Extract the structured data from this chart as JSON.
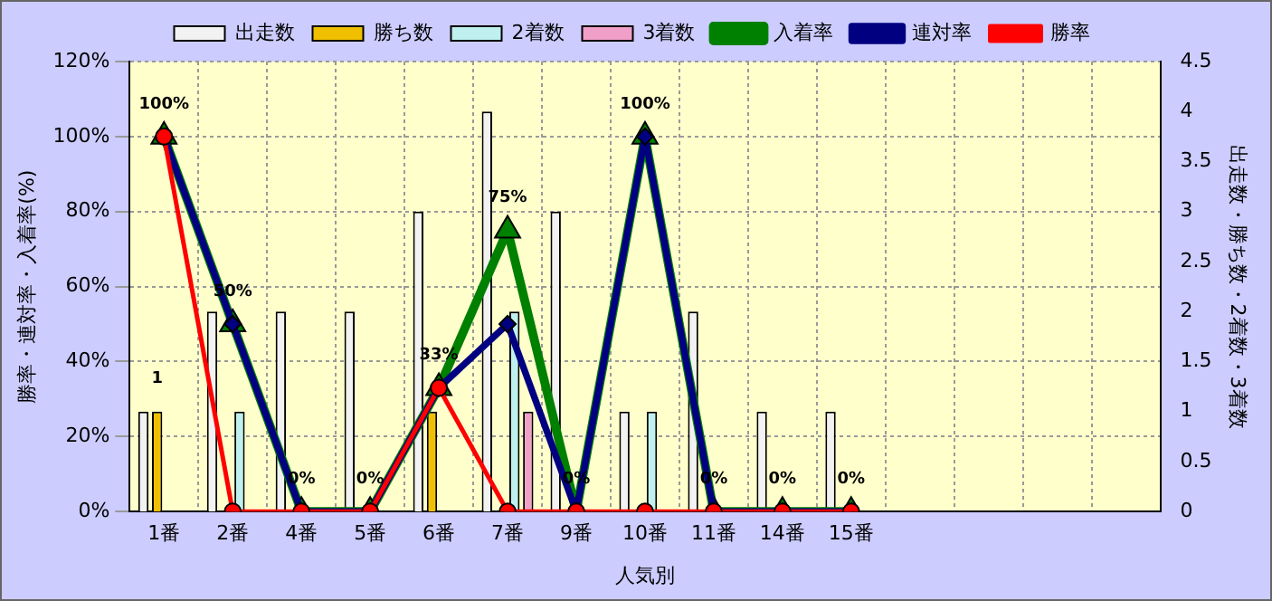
{
  "chart_data": {
    "type": "bar",
    "xlabel": "人気別",
    "ylabel": "勝率・連対率・入着率(%)",
    "y2label": "出走数・勝ち数・2着数・3着数",
    "categories": [
      "1番",
      "2番",
      "4番",
      "5番",
      "6番",
      "7番",
      "9番",
      "10番",
      "11番",
      "14番",
      "15番",
      null,
      null,
      null,
      null
    ],
    "series": [
      {
        "name": "出走数",
        "axis": "y2",
        "color": "#f2f2f2",
        "values": [
          1,
          2,
          2,
          2,
          3,
          4,
          3,
          1,
          2,
          1,
          1,
          null,
          null,
          null,
          null
        ]
      },
      {
        "name": "勝ち数",
        "axis": "y2",
        "color": "#f0c000",
        "values": [
          1,
          0,
          0,
          0,
          1,
          0,
          0,
          0,
          0,
          0,
          0,
          null,
          null,
          null,
          null
        ],
        "value_labels": [
          "1",
          null,
          null,
          null,
          null,
          null,
          null,
          null,
          null,
          null,
          null,
          null,
          null,
          null,
          null
        ]
      },
      {
        "name": "2着数",
        "axis": "y2",
        "color": "#bff0f0",
        "values": [
          0,
          1,
          0,
          0,
          0,
          2,
          0,
          1,
          0,
          0,
          0,
          null,
          null,
          null,
          null
        ]
      },
      {
        "name": "3着数",
        "axis": "y2",
        "color": "#f0a0c8",
        "values": [
          0,
          0,
          0,
          0,
          0,
          1,
          0,
          0,
          0,
          0,
          0,
          null,
          null,
          null,
          null
        ]
      },
      {
        "name": "入着率",
        "type": "line",
        "marker": "triangle",
        "color": "#008000",
        "values": [
          100,
          50,
          0,
          0,
          33,
          75,
          0,
          100,
          0,
          0,
          0,
          null,
          null,
          null,
          null
        ],
        "value_labels": [
          "100%",
          "50%",
          "0%",
          "0%",
          "33%",
          "75%",
          "0%",
          "100%",
          "0%",
          "0%",
          "0%",
          null,
          null,
          null,
          null
        ]
      },
      {
        "name": "連対率",
        "type": "line",
        "marker": "diamond",
        "color": "#000080",
        "values": [
          100,
          50,
          0,
          0,
          33,
          50,
          0,
          100,
          0,
          0,
          0,
          null,
          null,
          null,
          null
        ]
      },
      {
        "name": "勝率",
        "type": "line",
        "marker": "circle",
        "color": "#ff0000",
        "values": [
          100,
          0,
          0,
          0,
          33,
          0,
          0,
          0,
          0,
          0,
          0,
          null,
          null,
          null,
          null
        ]
      }
    ],
    "ylim": [
      0,
      120
    ],
    "yticks": [
      {
        "value": 0,
        "label": "0%"
      },
      {
        "value": 20,
        "label": "20%"
      },
      {
        "value": 40,
        "label": "40%"
      },
      {
        "value": 60,
        "label": "60%"
      },
      {
        "value": 80,
        "label": "80%"
      },
      {
        "value": 100,
        "label": "100%"
      },
      {
        "value": 120,
        "label": "120%"
      }
    ],
    "y2lim": [
      0,
      4.5
    ],
    "y2ticks": [
      0,
      0.5,
      1,
      1.5,
      2,
      2.5,
      3,
      3.5,
      4,
      4.5
    ],
    "grid": true,
    "legend": "top",
    "line_style": "solid"
  }
}
